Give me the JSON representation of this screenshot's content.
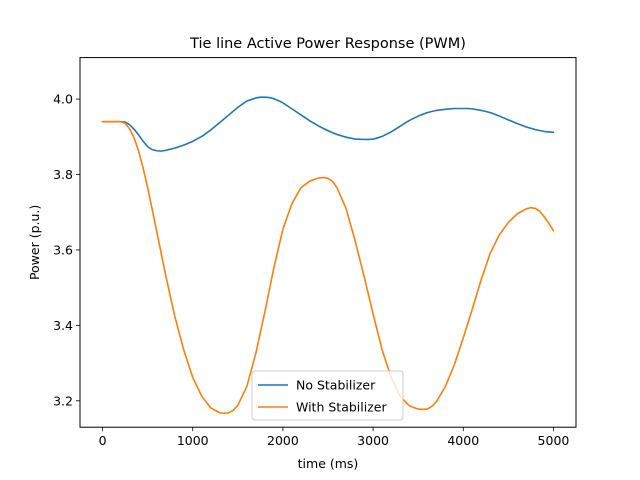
{
  "chart_data": {
    "type": "line",
    "title": "Tie line Active Power Response (PWM)",
    "xlabel": "time (ms)",
    "ylabel": "Power (p.u.)",
    "xlim": [
      -250,
      5250
    ],
    "ylim": [
      3.13,
      4.11
    ],
    "xticks": [
      0,
      1000,
      2000,
      3000,
      4000,
      5000
    ],
    "yticks": [
      3.2,
      3.4,
      3.6,
      3.8,
      4.0
    ],
    "ytick_labels": [
      "3.2",
      "3.4",
      "3.6",
      "3.8",
      "4.0"
    ],
    "grid": false,
    "legend_position": "lower-center",
    "series": [
      {
        "name": "No Stabilizer",
        "color": "#1f77b4",
        "x": [
          0,
          100,
          200,
          250,
          300,
          350,
          400,
          450,
          500,
          550,
          600,
          650,
          700,
          800,
          900,
          1000,
          1100,
          1200,
          1300,
          1400,
          1500,
          1600,
          1700,
          1750,
          1800,
          1850,
          1900,
          1950,
          2000,
          2100,
          2200,
          2300,
          2400,
          2500,
          2600,
          2700,
          2800,
          2900,
          2950,
          3000,
          3050,
          3100,
          3200,
          3300,
          3400,
          3500,
          3600,
          3700,
          3800,
          3900,
          4000,
          4050,
          4100,
          4200,
          4300,
          4400,
          4500,
          4600,
          4700,
          4800,
          4900,
          5000
        ],
        "y": [
          3.94,
          3.94,
          3.94,
          3.939,
          3.932,
          3.92,
          3.905,
          3.888,
          3.874,
          3.866,
          3.863,
          3.862,
          3.864,
          3.87,
          3.878,
          3.888,
          3.901,
          3.918,
          3.938,
          3.958,
          3.978,
          3.995,
          4.003,
          4.005,
          4.005,
          4.004,
          4.001,
          3.996,
          3.99,
          3.974,
          3.958,
          3.942,
          3.928,
          3.916,
          3.906,
          3.899,
          3.894,
          3.893,
          3.893,
          3.894,
          3.897,
          3.901,
          3.913,
          3.928,
          3.943,
          3.955,
          3.964,
          3.97,
          3.973,
          3.975,
          3.975,
          3.975,
          3.974,
          3.97,
          3.964,
          3.955,
          3.945,
          3.935,
          3.926,
          3.919,
          3.914,
          3.912
        ]
      },
      {
        "name": "With Stabilizer",
        "color": "#ff7f0e",
        "x": [
          0,
          100,
          200,
          250,
          300,
          350,
          400,
          450,
          500,
          550,
          600,
          700,
          800,
          900,
          1000,
          1100,
          1200,
          1300,
          1350,
          1400,
          1450,
          1500,
          1600,
          1700,
          1800,
          1900,
          2000,
          2100,
          2200,
          2300,
          2400,
          2450,
          2500,
          2550,
          2600,
          2700,
          2800,
          2900,
          3000,
          3100,
          3200,
          3300,
          3400,
          3500,
          3550,
          3600,
          3650,
          3700,
          3800,
          3900,
          4000,
          4100,
          4200,
          4300,
          4400,
          4500,
          4600,
          4700,
          4750,
          4800,
          4850,
          4900,
          4950,
          5000
        ],
        "y": [
          3.94,
          3.94,
          3.94,
          3.936,
          3.921,
          3.897,
          3.862,
          3.817,
          3.765,
          3.708,
          3.65,
          3.533,
          3.425,
          3.335,
          3.262,
          3.212,
          3.181,
          3.168,
          3.167,
          3.168,
          3.175,
          3.188,
          3.238,
          3.326,
          3.436,
          3.553,
          3.655,
          3.723,
          3.765,
          3.783,
          3.791,
          3.792,
          3.79,
          3.782,
          3.765,
          3.71,
          3.625,
          3.53,
          3.43,
          3.335,
          3.262,
          3.212,
          3.187,
          3.178,
          3.177,
          3.178,
          3.185,
          3.197,
          3.237,
          3.295,
          3.367,
          3.443,
          3.522,
          3.592,
          3.64,
          3.673,
          3.696,
          3.709,
          3.712,
          3.71,
          3.702,
          3.687,
          3.67,
          3.651
        ]
      }
    ]
  }
}
